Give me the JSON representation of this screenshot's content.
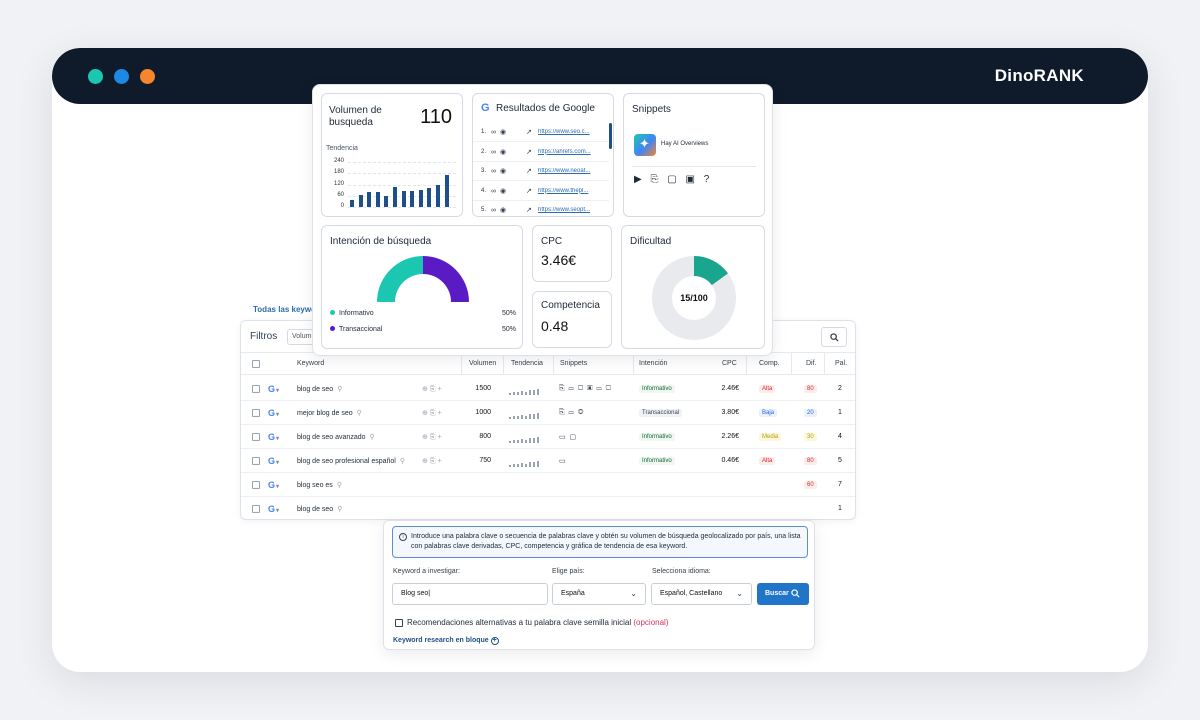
{
  "window": {
    "brand": "DinoRANK"
  },
  "tabs_label": "Todas las keyword",
  "filters": {
    "label": "Filtros",
    "volume_pill": "Volum"
  },
  "table": {
    "headers": {
      "keyword": "Keyword",
      "volumen": "Volumen",
      "tendencia": "Tendencia",
      "snippets": "Snippets",
      "intencion": "Intención",
      "cpc": "CPC",
      "comp": "Comp.",
      "dif": "Dif.",
      "pal": "Pal."
    },
    "rows": [
      {
        "keyword": "blog de seo",
        "volume": "1500",
        "snippets": "⎘ ▭ ▢ ▣ ▭ ▢",
        "intent": "Informativo",
        "cpc": "2.46€",
        "comp": "Alta",
        "dif": "80",
        "pal": "2"
      },
      {
        "keyword": "mejor blog de seo",
        "volume": "1000",
        "snippets": "⎘ ▭ ◎",
        "intent": "Transaccional",
        "cpc": "3.80€",
        "comp": "Baja",
        "dif": "20",
        "pal": "1"
      },
      {
        "keyword": "blog de seo avanzado",
        "volume": "800",
        "snippets": "▭ ▢",
        "intent": "Informativo",
        "cpc": "2.26€",
        "comp": "Media",
        "dif": "30",
        "pal": "4"
      },
      {
        "keyword": "blog de seo profesional español",
        "volume": "750",
        "snippets": "▭",
        "intent": "Informativo",
        "cpc": "0.46€",
        "comp": "Alta",
        "dif": "80",
        "pal": "5"
      },
      {
        "keyword": "blog seo es",
        "volume": "",
        "snippets": "",
        "intent": "",
        "cpc": "",
        "comp": "",
        "dif": "60",
        "pal": "7"
      },
      {
        "keyword": "blog de seo",
        "volume": "",
        "snippets": "",
        "intent": "",
        "cpc": "",
        "comp": "",
        "dif": "",
        "pal": "1"
      }
    ]
  },
  "volume_card": {
    "title": "Volumen de busqueda",
    "value": "110",
    "trend_label": "Tendencia",
    "chart_data": {
      "type": "bar",
      "title": "Tendencia",
      "y_ticks": [
        "240",
        "180",
        "120",
        "60",
        "0"
      ],
      "ylim": [
        0,
        240
      ],
      "values": [
        40,
        65,
        78,
        80,
        60,
        108,
        85,
        85,
        90,
        103,
        115,
        170
      ]
    }
  },
  "google_card": {
    "title": "Resultados de Google",
    "results": [
      {
        "n": "1.",
        "url": "https://www.seo.c..."
      },
      {
        "n": "2.",
        "url": "https://ahrefs.com..."
      },
      {
        "n": "3.",
        "url": "https://www.neoat..."
      },
      {
        "n": "4.",
        "url": "https://www.thepl..."
      },
      {
        "n": "5.",
        "url": "https://www.seopt..."
      }
    ]
  },
  "snippets_card": {
    "title": "Snippets",
    "ai_label": "Hay AI Overviews",
    "icons": "▶ ⎘ ▢ ▣ ?"
  },
  "intent_card": {
    "title": "Intención de búsqueda",
    "chart_data": {
      "type": "pie",
      "series": [
        {
          "name": "Informativo",
          "value": 50,
          "color": "#1cc7b1"
        },
        {
          "name": "Transaccional",
          "value": 50,
          "color": "#5b1bc4"
        }
      ]
    },
    "legend": [
      {
        "name": "Informativo",
        "value": "50%"
      },
      {
        "name": "Transaccional",
        "value": "50%"
      }
    ]
  },
  "cpc_card": {
    "title": "CPC",
    "value": "3.46€"
  },
  "competencia_card": {
    "title": "Competencia",
    "value": "0.48"
  },
  "difficulty_card": {
    "title": "Dificultad",
    "label": "15/100",
    "value": 15,
    "max": 100
  },
  "form": {
    "info": "Introduce una palabra clave o secuencia de palabras clave y obtén su volumen de búsqueda geolocalizado por país, una lista con palabras clave derivadas, CPC, competencia y gráfica de tendencia de esa keyword.",
    "keyword_label": "Keyword a investigar:",
    "keyword_value": "Blog seo|",
    "country_label": "Elige país:",
    "country_value": "España",
    "language_label": "Selecciona idioma:",
    "language_value": "Español, Castellano",
    "search_button": "Buscar",
    "reco_text": "Recomendaciones alternativas a tu palabra clave semilla inicial",
    "reco_optional": "(opcional)",
    "bulk_link": "Keyword research en bloque"
  },
  "colors": {
    "accent": "#2175c8",
    "teal": "#1cc7b1",
    "purple": "#5b1bc4",
    "navy": "#0f1a2b",
    "bar": "#1f4e8c"
  }
}
